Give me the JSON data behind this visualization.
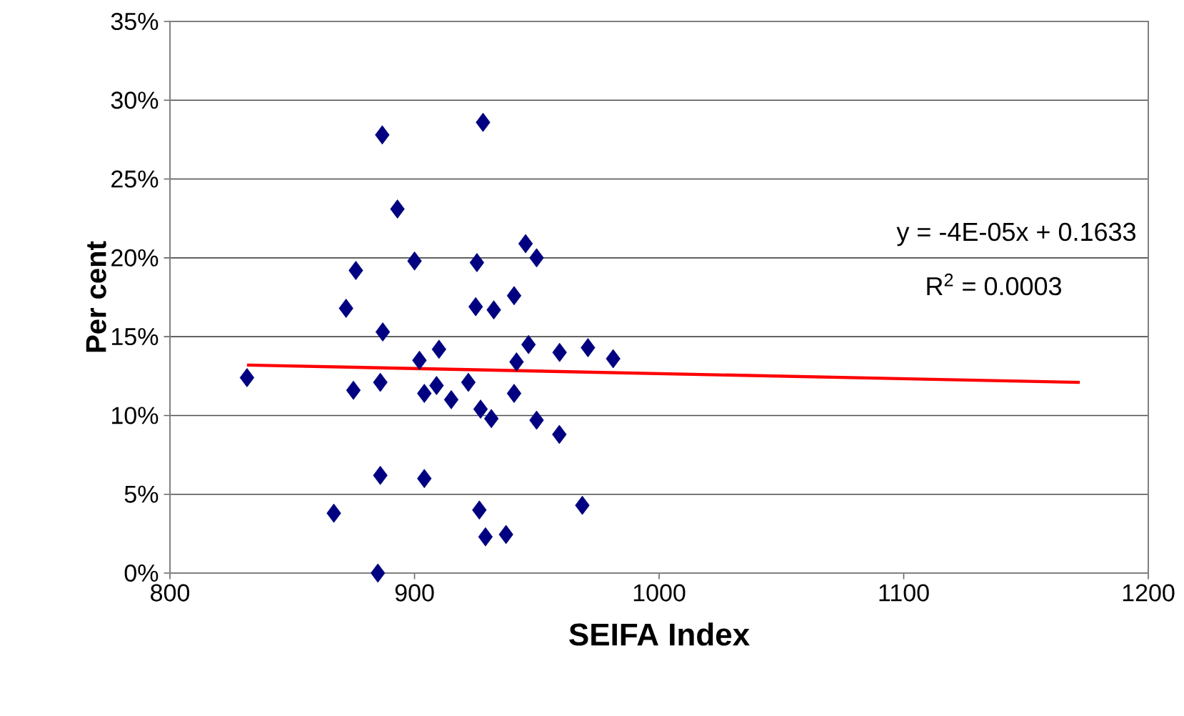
{
  "chart_data": {
    "type": "scatter",
    "xlabel": "SEIFA Index",
    "ylabel": "Per cent",
    "xlim": [
      800,
      1200
    ],
    "xticks": [
      800,
      900,
      1000,
      1100,
      1200
    ],
    "ylim": [
      0,
      35
    ],
    "yticks": [
      {
        "value": 0,
        "label": "0%"
      },
      {
        "value": 5,
        "label": "5%"
      },
      {
        "value": 10,
        "label": "10%"
      },
      {
        "value": 15,
        "label": "15%"
      },
      {
        "value": 20,
        "label": "20%"
      },
      {
        "value": 25,
        "label": "25%"
      },
      {
        "value": 30,
        "label": "30%"
      },
      {
        "value": 35,
        "label": "35%"
      }
    ],
    "grid": "y",
    "annotations": [
      "y = -4E-05x + 0.1633",
      "R$^{2}$ = 0.0003"
    ],
    "series": [
      {
        "color": "#000080",
        "marker": "diamond",
        "x": [
          831.5,
          867,
          872,
          876,
          875,
          886.8,
          886,
          885,
          886,
          887,
          893,
          900,
          902,
          904,
          904,
          909,
          910,
          915,
          925.5,
          925,
          932.4,
          922,
          927,
          931.4,
          926.5,
          929,
          937.4,
          928,
          945.4,
          949.9,
          940.7,
          946.6,
          941.7,
          959.3,
          970.9,
          981.2,
          940.7,
          949.9,
          959.2,
          968.6
        ],
        "values": [
          12.4,
          3.8,
          16.8,
          19.2,
          11.6,
          27.8,
          6.2,
          0,
          12.1,
          15.3,
          23.1,
          19.8,
          13.5,
          11.4,
          6.0,
          11.9,
          14.2,
          11.0,
          19.7,
          16.9,
          16.7,
          12.1,
          10.4,
          9.8,
          4.0,
          2.3,
          2.45,
          28.6,
          20.9,
          20.0,
          17.6,
          14.5,
          13.4,
          14.0,
          14.3,
          13.6,
          11.4,
          9.7,
          8.8,
          4.3
        ]
      },
      {
        "type": "line",
        "color": "#ff0000",
        "x": [
          831.5,
          1172
        ],
        "values": [
          13.2,
          12.1
        ]
      }
    ]
  }
}
